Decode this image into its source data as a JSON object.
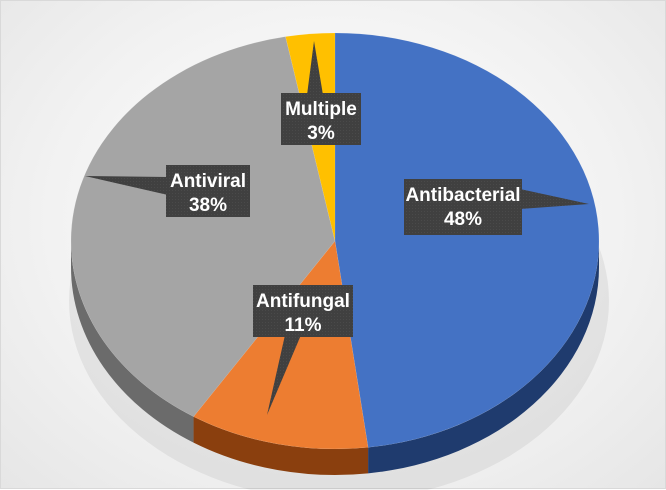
{
  "chart_data": {
    "type": "pie",
    "title": "",
    "legend": "none",
    "slices": [
      {
        "name": "Antibacterial",
        "value": 48,
        "label": "Antibacterial",
        "pct": "48%",
        "color": "#4472C4",
        "side_color": "#1F3B6E"
      },
      {
        "name": "Antifungal",
        "value": 11,
        "label": "Antifungal",
        "pct": "11%",
        "color": "#ED7D31",
        "side_color": "#8A3F0E"
      },
      {
        "name": "Antiviral",
        "value": 38,
        "label": "Antiviral",
        "pct": "38%",
        "color": "#A5A5A5",
        "side_color": "#6B6B6B"
      },
      {
        "name": "Multiple",
        "value": 3,
        "label": "Multiple",
        "pct": "3%",
        "color": "#FFC000",
        "side_color": "#9A7300"
      }
    ],
    "label_color": "#404040"
  }
}
